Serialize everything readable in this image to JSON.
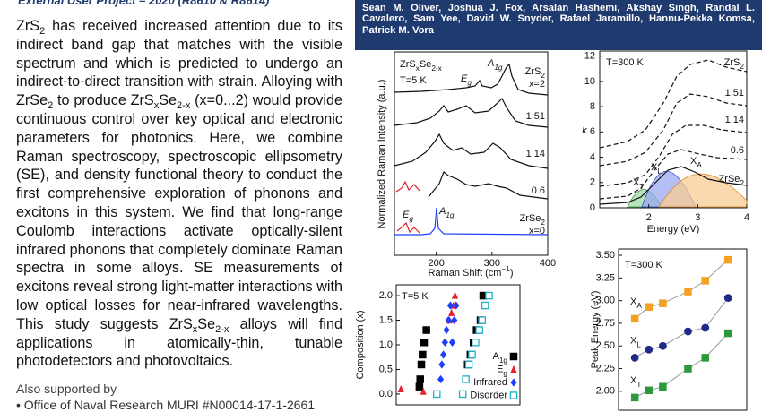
{
  "header": {
    "program": "External User Project – 2020 (R8610 & R8614)",
    "authors": "Sean M. Oliver, Joshua J. Fox, Arsalan Hashemi, Akshay Singh, Randal L. Cavalero, Sam Yee, David W. Snyder, Rafael Jaramillo, Hannu-Pekka Komsa, Patrick M. Vora"
  },
  "summary": [
    "ZrS",
    "2",
    " has received increased attention due to its indirect band gap that matches with the visible spectrum and which is predicted to undergo an indirect-to-direct transition with strain. Alloying with ZrSe",
    "2",
    " to produce ZrS",
    "x",
    "Se",
    "2-x",
    " (x=0...2) would provide continuous control over key optical and electronic parameters for photonics. Here, we combine Raman spectroscopy, spectroscopic ellipsometry (SE), and density functional theory to conduct the first comprehensive exploration of phonons and excitons in this system. We find that long-range Coulomb interactions activate optically-silent infrared phonons that completely dominate Raman spectra in some alloys. SE measurements of excitons reveal strong light-matter interactions with low optical losses for near-infrared wavelengths. This study suggests ZrS",
    "x",
    "Se",
    "2-x",
    " alloys will find applications in atomically-thin, tunable photodetectors and photovoltaics."
  ],
  "support": {
    "title": "Also supported by",
    "items": [
      "Office of Naval Research MURI #N00014-17-1-2661"
    ]
  },
  "figures": {
    "raman": {
      "sample": [
        "ZrS",
        "x",
        "Se",
        "2-x"
      ],
      "temperature": "T=5 K",
      "a1g": [
        "A",
        "1g"
      ],
      "eg": [
        "E",
        "g"
      ],
      "ylabel": "Normalized Raman Intensity (a.u.)",
      "xlabel": [
        "Raman Shift (cm",
        "−1",
        ")"
      ],
      "xlim": [
        125,
        400
      ],
      "xticks": [
        200,
        300,
        400
      ],
      "traces": [
        {
          "name": [
            "ZrS",
            "2"
          ],
          "note": "x=2"
        },
        {
          "name": "1.51"
        },
        {
          "name": "1.14"
        },
        {
          "name": "0.6"
        },
        {
          "name": [
            "ZrSe",
            "2"
          ],
          "note": "x=0"
        }
      ]
    },
    "ellipsometry": {
      "temperature": "T=300 K",
      "ylabel": "k",
      "xlabel": "Energy (eV)",
      "xlim": [
        1,
        4
      ],
      "xticks": [
        2,
        3,
        4
      ],
      "ylim": [
        0,
        12.4
      ],
      "yticks": [
        0,
        2,
        4,
        6,
        8,
        10,
        12
      ],
      "curves": [
        [
          "ZrS",
          "2"
        ],
        "1.51",
        "1.14",
        "0.6",
        [
          "ZrSe",
          "2"
        ]
      ],
      "excitons": [
        [
          "X",
          "T"
        ],
        [
          "X",
          "L"
        ],
        [
          "X",
          "A"
        ]
      ]
    },
    "composition": {
      "type": "scatter",
      "temperature": "T=5 K",
      "ylabel": "Composition (x)",
      "xlim": [
        100,
        420
      ],
      "ylim": [
        -0.22,
        2.22
      ],
      "yticks": [
        {
          "value": 0,
          "label": "0.0"
        },
        {
          "value": 0.5,
          "label": "0.5"
        },
        {
          "value": 1,
          "label": "1.0"
        },
        {
          "value": 1.5,
          "label": "1.5"
        },
        {
          "value": 2,
          "label": "2.0"
        }
      ],
      "series": [
        {
          "name": [
            "A",
            "1g"
          ],
          "color": "#000000",
          "marker": "square",
          "x": [
            160,
            162,
            165,
            168,
            172,
            178,
            285,
            292,
            300,
            308,
            318,
            325
          ],
          "values": [
            0.15,
            0.3,
            0.6,
            0.8,
            1.05,
            1.3,
            0.6,
            0.8,
            1.05,
            1.3,
            1.5,
            2.0
          ]
        },
        {
          "name": [
            "E",
            "g"
          ],
          "color": "#e8202a",
          "marker": "triangle",
          "x": [
            112,
            170,
            238,
            243,
            248,
            252
          ],
          "values": [
            0.1,
            0.05,
            1.5,
            1.65,
            1.8,
            2.0
          ]
        },
        {
          "name": "Infrared",
          "color": "#1f3fff",
          "marker": "diamond",
          "x": [
            215,
            218,
            222,
            226,
            230,
            235,
            240,
            245,
            250,
            255
          ],
          "values": [
            0.3,
            0.6,
            0.8,
            1.05,
            1.3,
            1.5,
            1.8,
            1.05,
            1.5,
            1.8
          ]
        },
        {
          "name": "Disorder",
          "color": "#20b0c8",
          "marker": "open-square",
          "x": [
            205,
            272,
            280,
            288,
            296,
            305,
            315,
            322,
            330,
            340
          ],
          "values": [
            0.0,
            0.0,
            0.3,
            0.6,
            0.8,
            1.05,
            1.3,
            1.5,
            1.8,
            2.0
          ]
        }
      ]
    },
    "peak_energy": {
      "type": "scatter",
      "temperature": "T=300 K",
      "ylabel": "Peak Energy (eV)",
      "xlim": [
        -0.35,
        2.4
      ],
      "ylim": [
        1.85,
        3.55
      ],
      "yticks": [
        {
          "value": 2,
          "label": "2.00"
        },
        {
          "value": 2.25,
          "label": "2.25"
        },
        {
          "value": 2.5,
          "label": "2.50"
        },
        {
          "value": 2.75,
          "label": "2.75"
        },
        {
          "value": 3,
          "label": "3.00"
        },
        {
          "value": 3.25,
          "label": "3.25"
        },
        {
          "value": 3.5,
          "label": "3.50"
        }
      ],
      "series": [
        {
          "name": [
            "X",
            "A"
          ],
          "color": "#f5a020",
          "marker": "square",
          "x": [
            0,
            0.3,
            0.6,
            1.14,
            1.51,
            2
          ],
          "values": [
            2.8,
            2.93,
            2.97,
            3.1,
            3.22,
            3.45
          ]
        },
        {
          "name": [
            "X",
            "L"
          ],
          "color": "#1d2a8a",
          "marker": "circle",
          "x": [
            0,
            0.3,
            0.6,
            1.14,
            1.51,
            2
          ],
          "values": [
            2.37,
            2.46,
            2.5,
            2.66,
            2.7,
            3.03
          ]
        },
        {
          "name": [
            "X",
            "T"
          ],
          "color": "#2a9a3a",
          "marker": "square",
          "x": [
            0,
            0.3,
            0.6,
            1.14,
            1.51,
            2
          ],
          "values": [
            1.93,
            2.01,
            2.05,
            2.25,
            2.37,
            2.64
          ]
        }
      ]
    }
  }
}
